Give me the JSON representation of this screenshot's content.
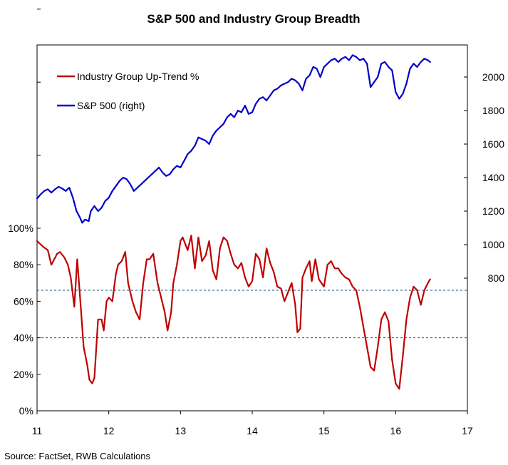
{
  "chart_data": {
    "type": "line",
    "title": "S&P 500 and Industry Group Breadth",
    "source": "Source: FactSet, RWB Calculations",
    "x_axis": {
      "range": [
        11,
        17
      ],
      "tick_labels": [
        "11",
        "12",
        "13",
        "14",
        "15",
        "16",
        "17"
      ]
    },
    "left_axis": {
      "range": [
        0,
        100
      ],
      "tick_labels": [
        "0%",
        "20%",
        "40%",
        "60%",
        "80%",
        "100%"
      ]
    },
    "right_axis": {
      "range": [
        800,
        2100
      ],
      "tick_labels": [
        "800",
        "1000",
        "1200",
        "1400",
        "1600",
        "1800",
        "2000"
      ]
    },
    "reference_lines": [
      {
        "axis": "left",
        "y": 66
      },
      {
        "axis": "left",
        "y": 40
      }
    ],
    "legend": {
      "placement": "top-left",
      "entries": [
        "Industry Group Up-Trend %",
        "S&P 500 (right)"
      ]
    },
    "colors": {
      "industry": "#c00000",
      "sp500": "#0000c8",
      "reference": "#1f4e79",
      "frame": "#000000"
    },
    "series": [
      {
        "name": "Industry Group Up-Trend %",
        "axis": "left",
        "color": "#c00000",
        "x": [
          11.0,
          11.08,
          11.15,
          11.2,
          11.28,
          11.32,
          11.38,
          11.43,
          11.47,
          11.52,
          11.56,
          11.6,
          11.65,
          11.7,
          11.73,
          11.77,
          11.8,
          11.85,
          11.9,
          11.93,
          11.97,
          12.0,
          12.05,
          12.1,
          12.13,
          12.18,
          12.23,
          12.27,
          12.33,
          12.38,
          12.43,
          12.48,
          12.53,
          12.57,
          12.62,
          12.68,
          12.73,
          12.78,
          12.82,
          12.87,
          12.9,
          12.95,
          13.0,
          13.03,
          13.1,
          13.15,
          13.2,
          13.25,
          13.3,
          13.35,
          13.4,
          13.45,
          13.5,
          13.55,
          13.6,
          13.65,
          13.7,
          13.75,
          13.8,
          13.85,
          13.9,
          13.95,
          14.0,
          14.05,
          14.1,
          14.15,
          14.2,
          14.25,
          14.3,
          14.35,
          14.4,
          14.45,
          14.5,
          14.55,
          14.6,
          14.63,
          14.67,
          14.7,
          14.75,
          14.8,
          14.83,
          14.88,
          14.93,
          15.0,
          15.05,
          15.1,
          15.15,
          15.2,
          15.25,
          15.3,
          15.35,
          15.4,
          15.45,
          15.5,
          15.55,
          15.6,
          15.65,
          15.7,
          15.75,
          15.8,
          15.85,
          15.9,
          15.95,
          16.0,
          16.05,
          16.1,
          16.15,
          16.2,
          16.25,
          16.3,
          16.35,
          16.4,
          16.45,
          16.48
        ],
        "values": [
          93,
          90,
          88,
          80,
          86,
          87,
          84,
          80,
          73,
          57,
          83,
          62,
          35,
          25,
          17,
          15,
          18,
          50,
          50,
          44,
          60,
          62,
          60,
          75,
          80,
          82,
          87,
          70,
          60,
          54,
          50,
          70,
          83,
          83,
          86,
          70,
          62,
          54,
          44,
          54,
          70,
          80,
          93,
          95,
          88,
          96,
          78,
          95,
          82,
          85,
          93,
          77,
          72,
          89,
          95,
          93,
          86,
          80,
          78,
          81,
          73,
          68,
          71,
          86,
          83,
          73,
          89,
          81,
          76,
          68,
          67,
          60,
          65,
          70,
          58,
          43,
          45,
          73,
          78,
          82,
          71,
          83,
          72,
          68,
          80,
          82,
          78,
          78,
          75,
          73,
          72,
          68,
          66,
          57,
          46,
          35,
          24,
          22,
          35,
          50,
          54,
          49,
          28,
          15,
          12,
          30,
          50,
          62,
          68,
          66,
          58,
          66,
          70,
          72
        ]
      },
      {
        "name": "S&P 500 (right)",
        "axis": "right",
        "color": "#0000c8",
        "x": [
          11.0,
          11.05,
          11.1,
          11.15,
          11.2,
          11.25,
          11.3,
          11.35,
          11.4,
          11.45,
          11.5,
          11.55,
          11.6,
          11.63,
          11.67,
          11.72,
          11.75,
          11.8,
          11.85,
          11.9,
          11.95,
          12.0,
          12.05,
          12.1,
          12.15,
          12.2,
          12.25,
          12.3,
          12.35,
          12.4,
          12.45,
          12.5,
          12.55,
          12.6,
          12.65,
          12.7,
          12.75,
          12.8,
          12.85,
          12.9,
          12.95,
          13.0,
          13.05,
          13.1,
          13.15,
          13.2,
          13.25,
          13.3,
          13.35,
          13.4,
          13.45,
          13.5,
          13.55,
          13.6,
          13.65,
          13.7,
          13.75,
          13.8,
          13.85,
          13.9,
          13.95,
          14.0,
          14.05,
          14.1,
          14.15,
          14.2,
          14.25,
          14.3,
          14.35,
          14.4,
          14.45,
          14.5,
          14.55,
          14.6,
          14.65,
          14.7,
          14.75,
          14.8,
          14.85,
          14.9,
          14.95,
          15.0,
          15.05,
          15.1,
          15.15,
          15.2,
          15.25,
          15.3,
          15.35,
          15.4,
          15.45,
          15.5,
          15.55,
          15.6,
          15.65,
          15.7,
          15.75,
          15.8,
          15.85,
          15.9,
          15.95,
          16.0,
          16.05,
          16.1,
          16.15,
          16.2,
          16.25,
          16.3,
          16.35,
          16.4,
          16.45,
          16.48
        ],
        "values": [
          1275,
          1300,
          1320,
          1330,
          1310,
          1330,
          1345,
          1335,
          1320,
          1340,
          1280,
          1200,
          1160,
          1130,
          1150,
          1140,
          1200,
          1230,
          1200,
          1220,
          1260,
          1280,
          1320,
          1350,
          1380,
          1400,
          1390,
          1360,
          1320,
          1340,
          1360,
          1380,
          1400,
          1420,
          1440,
          1460,
          1430,
          1410,
          1420,
          1450,
          1470,
          1460,
          1500,
          1540,
          1560,
          1590,
          1640,
          1630,
          1620,
          1600,
          1650,
          1680,
          1700,
          1720,
          1760,
          1780,
          1760,
          1800,
          1790,
          1830,
          1780,
          1790,
          1840,
          1870,
          1880,
          1860,
          1890,
          1920,
          1930,
          1950,
          1960,
          1970,
          1990,
          1980,
          1960,
          1920,
          1990,
          2010,
          2060,
          2050,
          2000,
          2060,
          2080,
          2100,
          2110,
          2090,
          2110,
          2120,
          2100,
          2130,
          2120,
          2100,
          2110,
          2080,
          1940,
          1970,
          2000,
          2080,
          2090,
          2060,
          2040,
          1910,
          1870,
          1900,
          1960,
          2050,
          2080,
          2060,
          2090,
          2110,
          2100,
          2090
        ]
      }
    ]
  }
}
